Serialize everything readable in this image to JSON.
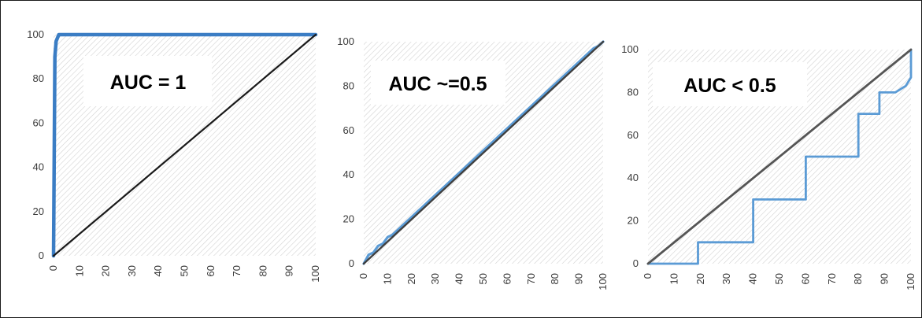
{
  "chart_data": [
    {
      "type": "line",
      "title": "AUC = 1",
      "xlim": [
        0,
        100
      ],
      "ylim": [
        0,
        100
      ],
      "x_ticks": [
        "0",
        "10",
        "20",
        "30",
        "40",
        "50",
        "60",
        "70",
        "80",
        "90",
        "100"
      ],
      "y_ticks": [
        "0",
        "20",
        "40",
        "60",
        "80",
        "100"
      ],
      "grid": false,
      "series": [
        {
          "role": "roc",
          "color": "#3b7dc4",
          "x": [
            0,
            0.5,
            1,
            2,
            100
          ],
          "y": [
            0,
            90,
            97,
            100,
            100
          ]
        },
        {
          "role": "diagonal",
          "color": "#1a1a1a",
          "x": [
            0,
            100
          ],
          "y": [
            0,
            100
          ]
        }
      ]
    },
    {
      "type": "line",
      "title": "AUC ~=0.5",
      "xlim": [
        0,
        100
      ],
      "ylim": [
        0,
        100
      ],
      "x_ticks": [
        "0",
        "10",
        "20",
        "30",
        "40",
        "50",
        "60",
        "70",
        "80",
        "90",
        "100"
      ],
      "y_ticks": [
        "0",
        "20",
        "40",
        "60",
        "80",
        "100"
      ],
      "grid": false,
      "series": [
        {
          "role": "roc",
          "color": "#5b9bd5",
          "x": [
            0,
            2,
            4,
            6,
            8,
            10,
            12,
            14,
            16,
            18,
            20,
            22,
            24,
            26,
            28,
            30,
            32,
            34,
            36,
            38,
            40,
            42,
            44,
            46,
            48,
            50,
            52,
            54,
            56,
            58,
            60,
            62,
            64,
            66,
            68,
            70,
            72,
            74,
            76,
            78,
            80,
            82,
            84,
            86,
            88,
            90,
            92,
            94,
            96,
            98,
            100
          ],
          "y": [
            0,
            4,
            5,
            8,
            9,
            12,
            13,
            15,
            17,
            19,
            21,
            23,
            25,
            27,
            29,
            31,
            33,
            35,
            37,
            39,
            41,
            43,
            45,
            47,
            49,
            51,
            53,
            55,
            57,
            59,
            61,
            63,
            65,
            67,
            69,
            71,
            73,
            75,
            77,
            79,
            81,
            83,
            85,
            87,
            89,
            91,
            93,
            95,
            97,
            98,
            100
          ]
        },
        {
          "role": "diagonal",
          "color": "#404040",
          "x": [
            0,
            100
          ],
          "y": [
            0,
            100
          ]
        }
      ]
    },
    {
      "type": "line",
      "title": "AUC < 0.5",
      "xlim": [
        0,
        100
      ],
      "ylim": [
        0,
        100
      ],
      "x_ticks": [
        "0",
        "10",
        "20",
        "30",
        "40",
        "50",
        "60",
        "70",
        "80",
        "90",
        "100"
      ],
      "y_ticks": [
        "0",
        "20",
        "40",
        "60",
        "80",
        "100"
      ],
      "grid": false,
      "series": [
        {
          "role": "roc",
          "color": "#5b9bd5",
          "x": [
            0,
            19,
            19,
            40,
            40,
            60,
            60,
            80,
            80,
            88,
            88,
            94,
            98,
            100,
            100
          ],
          "y": [
            0,
            0,
            10,
            10,
            30,
            30,
            50,
            50,
            70,
            70,
            80,
            80,
            83,
            87,
            100
          ]
        },
        {
          "role": "diagonal",
          "color": "#555555",
          "x": [
            0,
            100
          ],
          "y": [
            0,
            100
          ]
        }
      ]
    }
  ]
}
